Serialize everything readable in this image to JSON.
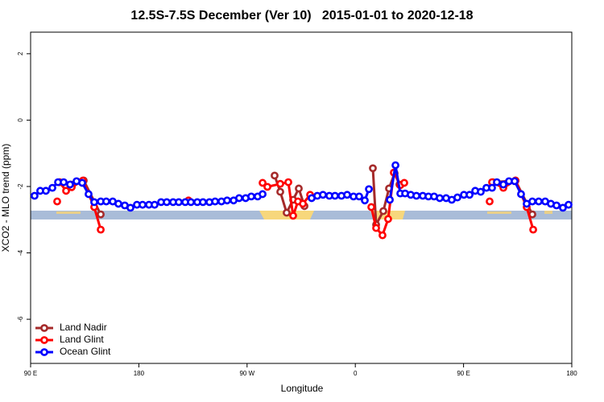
{
  "chart_data": {
    "type": "line",
    "title": "12.5S-7.5S December (Ver 10)   2015-01-01 to 2020-12-18",
    "x_label": "Longitude",
    "y_label": "XCO2 - MLO trend (ppm)",
    "xlim": [
      90,
      540
    ],
    "xticks": [
      {
        "value": 90,
        "label": "90 E"
      },
      180,
      {
        "value": 270,
        "label": "90 W"
      },
      {
        "value": 360,
        "label": "0"
      },
      {
        "value": 450,
        "label": "90 E"
      },
      {
        "value": 540,
        "label": "180"
      }
    ],
    "ylim": [
      -7.33,
      2.65
    ],
    "yticks": [
      2,
      0,
      -2,
      -4,
      -6
    ],
    "legend": "bottom-left",
    "series": [
      {
        "name": "Land Nadir",
        "color": "#a52a2a",
        "x": [
          114.1,
          123.5,
          134.2,
          148.3,
          null,
          292.9,
          297.6,
          302.9,
          308.3,
          313.0,
          317.7,
          null,
          374.6,
          377.3,
          383.3,
          388.0,
          392.7,
          396.7,
          null,
          474.4,
          493.2,
          507.2
        ],
        "values": [
          -1.87,
          -1.94,
          -1.82,
          -2.84,
          null,
          -1.67,
          -2.16,
          -2.79,
          -2.4,
          -2.06,
          -2.59,
          null,
          -1.45,
          -3.15,
          -2.74,
          -2.06,
          -1.6,
          -1.94,
          null,
          -1.87,
          -1.82,
          -2.84
        ]
      },
      {
        "name": "Land Glint",
        "color": "#ff0000",
        "x": [
          112.1,
          null,
          114.1,
          119.5,
          124.2,
          133.5,
          142.9,
          148.3,
          null,
          221.3,
          null,
          282.9,
          286.9,
          297.6,
          304.3,
          308.3,
          312.3,
          316.4,
          322.4,
          null,
          373.3,
          377.3,
          382.6,
          387.3,
          392.0,
          397.4,
          400.7,
          null,
          471.7,
          null,
          473.7,
          483.1,
          493.2,
          502.5,
          507.9
        ],
        "values": [
          -2.45,
          null,
          -1.87,
          -2.13,
          -2.02,
          -1.82,
          -2.62,
          -3.3,
          null,
          -2.42,
          null,
          -1.89,
          -2.01,
          -1.92,
          -1.87,
          -2.88,
          -2.45,
          -2.52,
          -2.25,
          null,
          -2.62,
          -3.25,
          -3.47,
          -2.98,
          -1.58,
          -1.96,
          -1.89,
          null,
          -2.45,
          null,
          -1.87,
          -2.04,
          -1.82,
          -2.62,
          -3.3
        ]
      },
      {
        "name": "Ocean Glint",
        "color": "#0000ff",
        "x": [
          93.3,
          98.0,
          102.7,
          108.1,
          112.8,
          117.5,
          122.8,
          128.2,
          132.9,
          138.2,
          142.9,
          148.3,
          152.9,
          158.3,
          163.0,
          168.3,
          173.0,
          178.4,
          183.1,
          188.4,
          193.1,
          198.5,
          203.2,
          208.5,
          213.2,
          218.6,
          223.3,
          228.6,
          233.3,
          238.7,
          243.4,
          248.7,
          253.4,
          258.8,
          263.4,
          268.8,
          273.5,
          278.8,
          282.9,
          null,
          323.7,
          328.4,
          333.1,
          338.4,
          343.1,
          348.5,
          353.2,
          358.5,
          363.2,
          367.9,
          371.3,
          null,
          388.7,
          393.4,
          397.4,
          401.4,
          406.1,
          410.8,
          416.1,
          420.8,
          425.5,
          430.2,
          435.5,
          440.2,
          444.9,
          450.3,
          455.0,
          459.7,
          464.3,
          469.0,
          473.7,
          477.7,
          483.1,
          487.8,
          492.5,
          497.8,
          502.5,
          507.2,
          512.5,
          517.9,
          522.6,
          527.3,
          532.6,
          537.3
        ],
        "values": [
          -2.28,
          -2.13,
          -2.13,
          -2.04,
          -1.87,
          -1.87,
          -1.94,
          -1.84,
          -1.89,
          -2.23,
          -2.47,
          -2.45,
          -2.45,
          -2.45,
          -2.52,
          -2.57,
          -2.64,
          -2.55,
          -2.55,
          -2.55,
          -2.55,
          -2.47,
          -2.47,
          -2.47,
          -2.47,
          -2.47,
          -2.47,
          -2.47,
          -2.47,
          -2.47,
          -2.45,
          -2.45,
          -2.42,
          -2.42,
          -2.35,
          -2.35,
          -2.3,
          -2.3,
          -2.23,
          null,
          -2.35,
          -2.28,
          -2.25,
          -2.28,
          -2.28,
          -2.28,
          -2.25,
          -2.3,
          -2.3,
          -2.42,
          -2.08,
          null,
          -2.4,
          -1.36,
          -2.21,
          -2.21,
          -2.25,
          -2.28,
          -2.28,
          -2.3,
          -2.3,
          -2.35,
          -2.35,
          -2.4,
          -2.33,
          -2.25,
          -2.25,
          -2.13,
          -2.16,
          -2.04,
          -2.04,
          -1.87,
          -1.94,
          -1.84,
          -1.84,
          -2.23,
          -2.52,
          -2.45,
          -2.45,
          -2.45,
          -2.52,
          -2.57,
          -2.64,
          -2.55
        ]
      }
    ]
  }
}
